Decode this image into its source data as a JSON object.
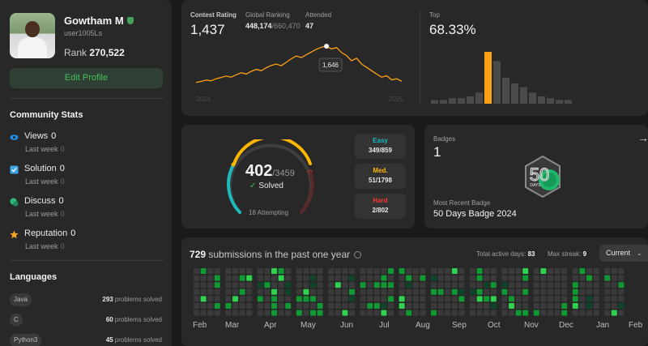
{
  "profile": {
    "name": "Gowtham M",
    "username": "user1005Ls",
    "rank_label": "Rank",
    "rank_value": "270,522",
    "edit_label": "Edit Profile"
  },
  "community": {
    "title": "Community Stats",
    "items": [
      {
        "label": "Views",
        "value": "0",
        "sub": "Last week",
        "sub_value": "0",
        "icon": "eye-icon",
        "color": "#1e8ee9"
      },
      {
        "label": "Solution",
        "value": "0",
        "sub": "Last week",
        "sub_value": "0",
        "icon": "solution-icon",
        "color": "#3ea5e8"
      },
      {
        "label": "Discuss",
        "value": "0",
        "sub": "Last week",
        "sub_value": "0",
        "icon": "discuss-icon",
        "color": "#2cbb7d"
      },
      {
        "label": "Reputation",
        "value": "0",
        "sub": "Last week",
        "sub_value": "0",
        "icon": "star-icon",
        "color": "#f5a623"
      }
    ]
  },
  "languages": {
    "title": "Languages",
    "items": [
      {
        "name": "Java",
        "count": "293",
        "suffix": "problems solved"
      },
      {
        "name": "C",
        "count": "60",
        "suffix": "problems solved"
      },
      {
        "name": "Python3",
        "count": "45",
        "suffix": "problems solved"
      }
    ]
  },
  "contest": {
    "rating_label": "Contest Rating",
    "rating_value": "1,437",
    "global_label": "Global Ranking",
    "global_value": "448,174",
    "global_total": "/660,470",
    "attended_label": "Attended",
    "attended_value": "47",
    "tooltip": "1,646",
    "x_start": "2024",
    "x_end": "2025",
    "top_label": "Top",
    "top_value": "68.33%",
    "line_color": "#ffa116"
  },
  "solved": {
    "count": "402",
    "total": "/3459",
    "solved_label": "Solved",
    "attempting": "18 Attempting",
    "easy_label": "Easy",
    "easy_value": "349/859",
    "easy_color": "#1cbaba",
    "med_label": "Med.",
    "med_value": "51/1798",
    "med_color": "#ffb700",
    "hard_label": "Hard",
    "hard_value": "2/802",
    "hard_color": "#f63737"
  },
  "badges": {
    "label": "Badges",
    "count": "1",
    "recent_label": "Most Recent Badge",
    "recent_name": "50 Days Badge 2024",
    "badge_text": "DAYS",
    "badge_number": "50"
  },
  "submissions": {
    "count": "729",
    "text": "submissions in the past one year",
    "active_label": "Total active days:",
    "active_value": "83",
    "streak_label": "Max streak:",
    "streak_value": "9",
    "dropdown": "Current",
    "months": [
      "Feb",
      "Mar",
      "Apr",
      "May",
      "Jun",
      "Jul",
      "Aug",
      "Sep",
      "Oct",
      "Nov",
      "Dec",
      "Jan",
      "Feb"
    ]
  },
  "chart_data": {
    "type": "line",
    "series": [
      {
        "values": [
          1430,
          1436,
          1444,
          1440,
          1452,
          1460,
          1468,
          1462,
          1476,
          1488,
          1480,
          1496,
          1508,
          1500,
          1518,
          1532,
          1540,
          1530,
          1550,
          1572,
          1588,
          1578,
          1596,
          1612,
          1628,
          1640,
          1646,
          1630,
          1638,
          1608,
          1590,
          1560,
          1575,
          1540,
          1520,
          1500,
          1480,
          1462,
          1470,
          1446,
          1452,
          1437
        ]
      }
    ],
    "hist_values": [
      2,
      2,
      3,
      3,
      4,
      6,
      28,
      23,
      14,
      11,
      9,
      6,
      4,
      3,
      2,
      2
    ],
    "hist_highlight": 6
  }
}
